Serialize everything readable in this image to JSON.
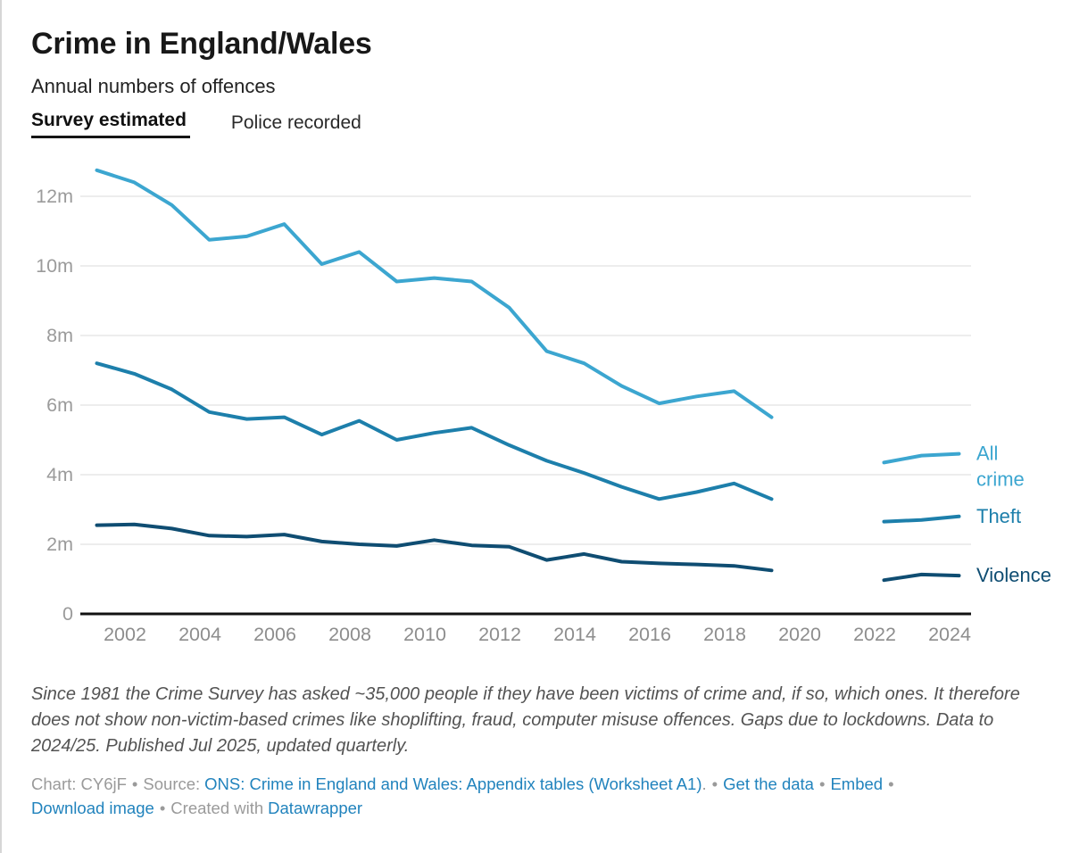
{
  "header": {
    "title": "Crime in England/Wales",
    "subtitle": "Annual numbers of offences"
  },
  "tabs": [
    {
      "label": "Survey estimated",
      "active": true
    },
    {
      "label": "Police recorded",
      "active": false
    }
  ],
  "chart_data": {
    "type": "line",
    "unit": "millions of offences per year",
    "y_axis": {
      "ticks": [
        {
          "value": 12,
          "label": "12m"
        },
        {
          "value": 10,
          "label": "10m"
        },
        {
          "value": 8,
          "label": "8m"
        },
        {
          "value": 6,
          "label": "6m"
        },
        {
          "value": 4,
          "label": "4m"
        },
        {
          "value": 2,
          "label": "2m"
        },
        {
          "value": 0,
          "label": "0"
        }
      ],
      "ylim": [
        0,
        13.2
      ],
      "grid": true
    },
    "x_axis": {
      "ticks": [
        2002,
        2004,
        2006,
        2008,
        2010,
        2012,
        2014,
        2016,
        2018,
        2020,
        2022,
        2024
      ]
    },
    "gap_years": [
      2020,
      2021
    ],
    "series": [
      {
        "id": "all-crime",
        "name": "All crime",
        "label_lines": [
          "All",
          "crime"
        ],
        "color": "#3ca6d0",
        "segments": [
          {
            "years": [
              2001,
              2002,
              2003,
              2004,
              2005,
              2006,
              2007,
              2008,
              2009,
              2010,
              2011,
              2012,
              2013,
              2014,
              2015,
              2016,
              2017,
              2018,
              2019
            ],
            "values": [
              12.75,
              12.4,
              11.75,
              10.75,
              10.85,
              11.2,
              10.05,
              10.4,
              9.55,
              9.65,
              9.55,
              8.8,
              7.55,
              7.2,
              6.55,
              6.05,
              6.25,
              6.4,
              5.65
            ]
          },
          {
            "years": [
              2022,
              2023,
              2024
            ],
            "values": [
              4.35,
              4.55,
              4.6
            ]
          }
        ]
      },
      {
        "id": "theft",
        "name": "Theft",
        "label_lines": [
          "Theft"
        ],
        "color": "#1d7fab",
        "segments": [
          {
            "years": [
              2001,
              2002,
              2003,
              2004,
              2005,
              2006,
              2007,
              2008,
              2009,
              2010,
              2011,
              2012,
              2013,
              2014,
              2015,
              2016,
              2017,
              2018,
              2019
            ],
            "values": [
              7.2,
              6.9,
              6.45,
              5.8,
              5.6,
              5.65,
              5.15,
              5.55,
              5.0,
              5.2,
              5.35,
              4.85,
              4.4,
              4.05,
              3.65,
              3.3,
              3.5,
              3.75,
              3.3
            ]
          },
          {
            "years": [
              2022,
              2023,
              2024
            ],
            "values": [
              2.65,
              2.7,
              2.8
            ]
          }
        ]
      },
      {
        "id": "violence",
        "name": "Violence",
        "label_lines": [
          "Violence"
        ],
        "color": "#0f4d72",
        "segments": [
          {
            "years": [
              2001,
              2002,
              2003,
              2004,
              2005,
              2006,
              2007,
              2008,
              2009,
              2010,
              2011,
              2012,
              2013,
              2014,
              2015,
              2016,
              2017,
              2018,
              2019
            ],
            "values": [
              2.55,
              2.57,
              2.45,
              2.25,
              2.22,
              2.28,
              2.08,
              2.0,
              1.95,
              2.12,
              1.97,
              1.93,
              1.55,
              1.72,
              1.5,
              1.45,
              1.42,
              1.38,
              1.25
            ]
          },
          {
            "years": [
              2022,
              2023,
              2024
            ],
            "values": [
              0.97,
              1.13,
              1.1
            ]
          }
        ]
      }
    ]
  },
  "note": {
    "text": "Since 1981 the Crime Survey has asked ~35,000 people if they have been victims of crime and, if so, which ones. It therefore does not show non-victim-based crimes like shoplifting, fraud, computer misuse offences. Gaps due to lockdowns. Data to 2024/25. Published Jul 2025, updated quarterly."
  },
  "byline": {
    "chart_label": "Chart: CY6jF",
    "dot": "•",
    "source_label": "Source:",
    "source_link": "ONS: Crime in England and Wales: Appendix tables (Worksheet A1)",
    "period": ".",
    "get_data_link": "Get the data",
    "embed_link": "Embed",
    "download_link": "Download image",
    "created_with": "Created with",
    "datawrapper_link": "Datawrapper"
  }
}
